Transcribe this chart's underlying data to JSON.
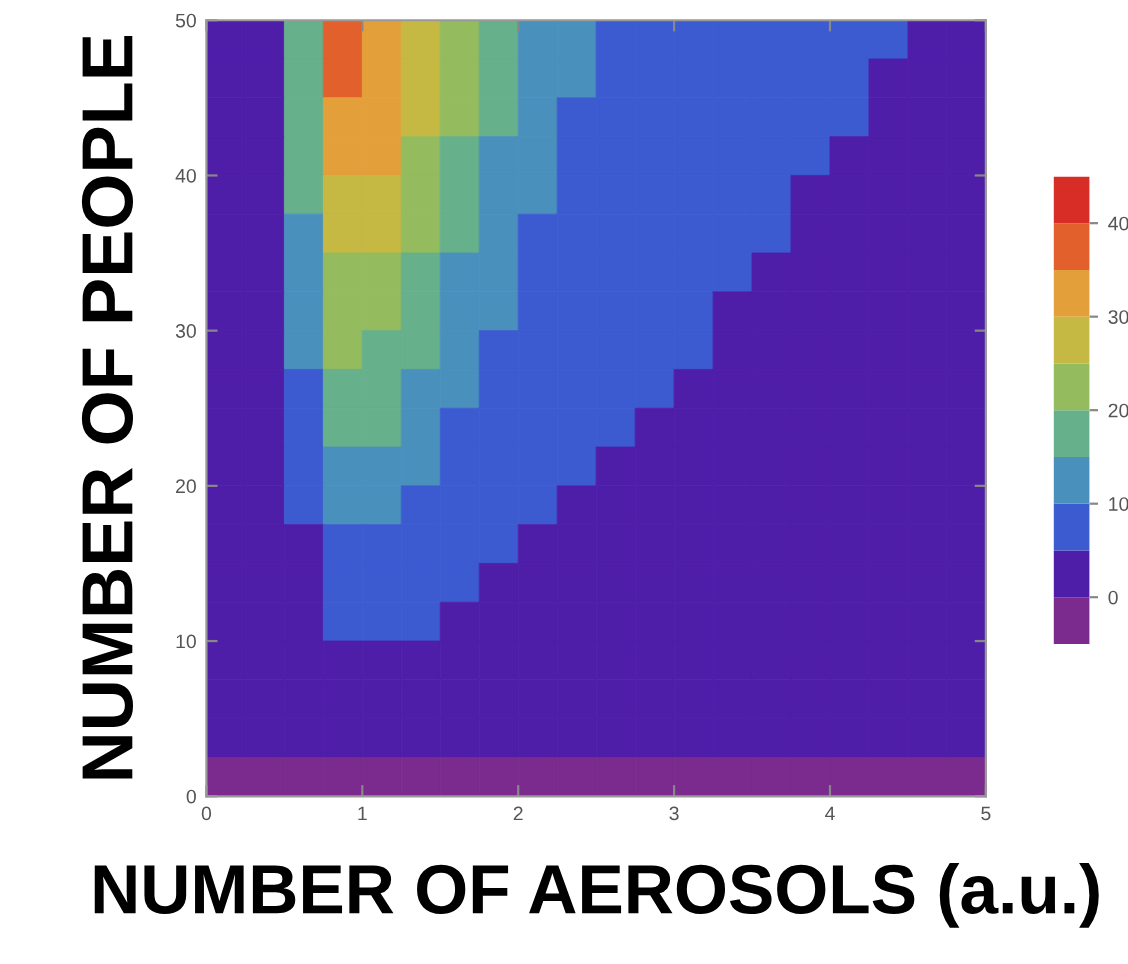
{
  "chart_data": {
    "type": "heatmap",
    "xlabel": "NUMBER OF AEROSOLS (a.u.)",
    "ylabel": "NUMBER OF PEOPLE",
    "xlim": [
      0,
      5
    ],
    "ylim": [
      0,
      50
    ],
    "xticks": [
      0,
      1,
      2,
      3,
      4,
      5
    ],
    "yticks": [
      0,
      10,
      20,
      30,
      40,
      50
    ],
    "clim": [
      -5,
      45
    ],
    "cticks": [
      0,
      10,
      20,
      30,
      40
    ],
    "colors": [
      "#7b2a8e",
      "#4f1ea8",
      "#3d5bd0",
      "#4a90bd",
      "#66b08c",
      "#94bb5e",
      "#c5b843",
      "#e3a03a",
      "#e2602c",
      "#d82d26"
    ],
    "cells": [
      [
        2.5,
        2.5,
        17.5,
        37.5,
        32.5,
        27.5,
        22.5,
        17.5,
        12.5,
        12.5,
        7.5,
        7.5,
        7.5,
        7.5,
        7.5,
        7.5,
        7.5,
        7.5,
        2.5,
        2.5
      ],
      [
        2.5,
        2.5,
        17.5,
        37.5,
        32.5,
        27.5,
        22.5,
        17.5,
        12.5,
        12.5,
        7.5,
        7.5,
        7.5,
        7.5,
        7.5,
        7.5,
        7.5,
        2.5,
        2.5,
        2.5
      ],
      [
        2.5,
        2.5,
        17.5,
        32.5,
        32.5,
        27.5,
        22.5,
        17.5,
        12.5,
        7.5,
        7.5,
        7.5,
        7.5,
        7.5,
        7.5,
        7.5,
        7.5,
        2.5,
        2.5,
        2.5
      ],
      [
        2.5,
        2.5,
        17.5,
        32.5,
        32.5,
        22.5,
        17.5,
        12.5,
        12.5,
        7.5,
        7.5,
        7.5,
        7.5,
        7.5,
        7.5,
        7.5,
        2.5,
        2.5,
        2.5,
        2.5
      ],
      [
        2.5,
        2.5,
        17.5,
        27.5,
        27.5,
        22.5,
        17.5,
        12.5,
        12.5,
        7.5,
        7.5,
        7.5,
        7.5,
        7.5,
        7.5,
        2.5,
        2.5,
        2.5,
        2.5,
        2.5
      ],
      [
        2.5,
        2.5,
        12.5,
        27.5,
        27.5,
        22.5,
        17.5,
        12.5,
        7.5,
        7.5,
        7.5,
        7.5,
        7.5,
        7.5,
        7.5,
        2.5,
        2.5,
        2.5,
        2.5,
        2.5
      ],
      [
        2.5,
        2.5,
        12.5,
        22.5,
        22.5,
        17.5,
        12.5,
        12.5,
        7.5,
        7.5,
        7.5,
        7.5,
        7.5,
        7.5,
        2.5,
        2.5,
        2.5,
        2.5,
        2.5,
        2.5
      ],
      [
        2.5,
        2.5,
        12.5,
        22.5,
        22.5,
        17.5,
        12.5,
        12.5,
        7.5,
        7.5,
        7.5,
        7.5,
        7.5,
        2.5,
        2.5,
        2.5,
        2.5,
        2.5,
        2.5,
        2.5
      ],
      [
        2.5,
        2.5,
        12.5,
        22.5,
        17.5,
        17.5,
        12.5,
        7.5,
        7.5,
        7.5,
        7.5,
        7.5,
        7.5,
        2.5,
        2.5,
        2.5,
        2.5,
        2.5,
        2.5,
        2.5
      ],
      [
        2.5,
        2.5,
        7.5,
        17.5,
        17.5,
        12.5,
        12.5,
        7.5,
        7.5,
        7.5,
        7.5,
        7.5,
        2.5,
        2.5,
        2.5,
        2.5,
        2.5,
        2.5,
        2.5,
        2.5
      ],
      [
        2.5,
        2.5,
        7.5,
        17.5,
        17.5,
        12.5,
        7.5,
        7.5,
        7.5,
        7.5,
        7.5,
        2.5,
        2.5,
        2.5,
        2.5,
        2.5,
        2.5,
        2.5,
        2.5,
        2.5
      ],
      [
        2.5,
        2.5,
        7.5,
        12.5,
        12.5,
        12.5,
        7.5,
        7.5,
        7.5,
        7.5,
        2.5,
        2.5,
        2.5,
        2.5,
        2.5,
        2.5,
        2.5,
        2.5,
        2.5,
        2.5
      ],
      [
        2.5,
        2.5,
        7.5,
        12.5,
        12.5,
        7.5,
        7.5,
        7.5,
        7.5,
        2.5,
        2.5,
        2.5,
        2.5,
        2.5,
        2.5,
        2.5,
        2.5,
        2.5,
        2.5,
        2.5
      ],
      [
        2.5,
        2.5,
        2.5,
        7.5,
        7.5,
        7.5,
        7.5,
        7.5,
        2.5,
        2.5,
        2.5,
        2.5,
        2.5,
        2.5,
        2.5,
        2.5,
        2.5,
        2.5,
        2.5,
        2.5
      ],
      [
        2.5,
        2.5,
        2.5,
        7.5,
        7.5,
        7.5,
        7.5,
        2.5,
        2.5,
        2.5,
        2.5,
        2.5,
        2.5,
        2.5,
        2.5,
        2.5,
        2.5,
        2.5,
        2.5,
        2.5
      ],
      [
        2.5,
        2.5,
        2.5,
        7.5,
        7.5,
        7.5,
        2.5,
        2.5,
        2.5,
        2.5,
        2.5,
        2.5,
        2.5,
        2.5,
        2.5,
        2.5,
        2.5,
        2.5,
        2.5,
        2.5
      ],
      [
        2.5,
        2.5,
        2.5,
        2.5,
        2.5,
        2.5,
        2.5,
        2.5,
        2.5,
        2.5,
        2.5,
        2.5,
        2.5,
        2.5,
        2.5,
        2.5,
        2.5,
        2.5,
        2.5,
        2.5
      ],
      [
        2.5,
        2.5,
        2.5,
        2.5,
        2.5,
        2.5,
        2.5,
        2.5,
        2.5,
        2.5,
        2.5,
        2.5,
        2.5,
        2.5,
        2.5,
        2.5,
        2.5,
        2.5,
        2.5,
        2.5
      ],
      [
        2.5,
        2.5,
        2.5,
        2.5,
        2.5,
        2.5,
        2.5,
        2.5,
        2.5,
        2.5,
        2.5,
        2.5,
        2.5,
        2.5,
        2.5,
        2.5,
        2.5,
        2.5,
        2.5,
        2.5
      ],
      [
        -2.5,
        -2.5,
        -2.5,
        -2.5,
        -2.5,
        -2.5,
        -2.5,
        -2.5,
        -2.5,
        -2.5,
        -2.5,
        -2.5,
        -2.5,
        -2.5,
        -2.5,
        -2.5,
        -2.5,
        -2.5,
        -2.5,
        -2.5
      ]
    ]
  }
}
